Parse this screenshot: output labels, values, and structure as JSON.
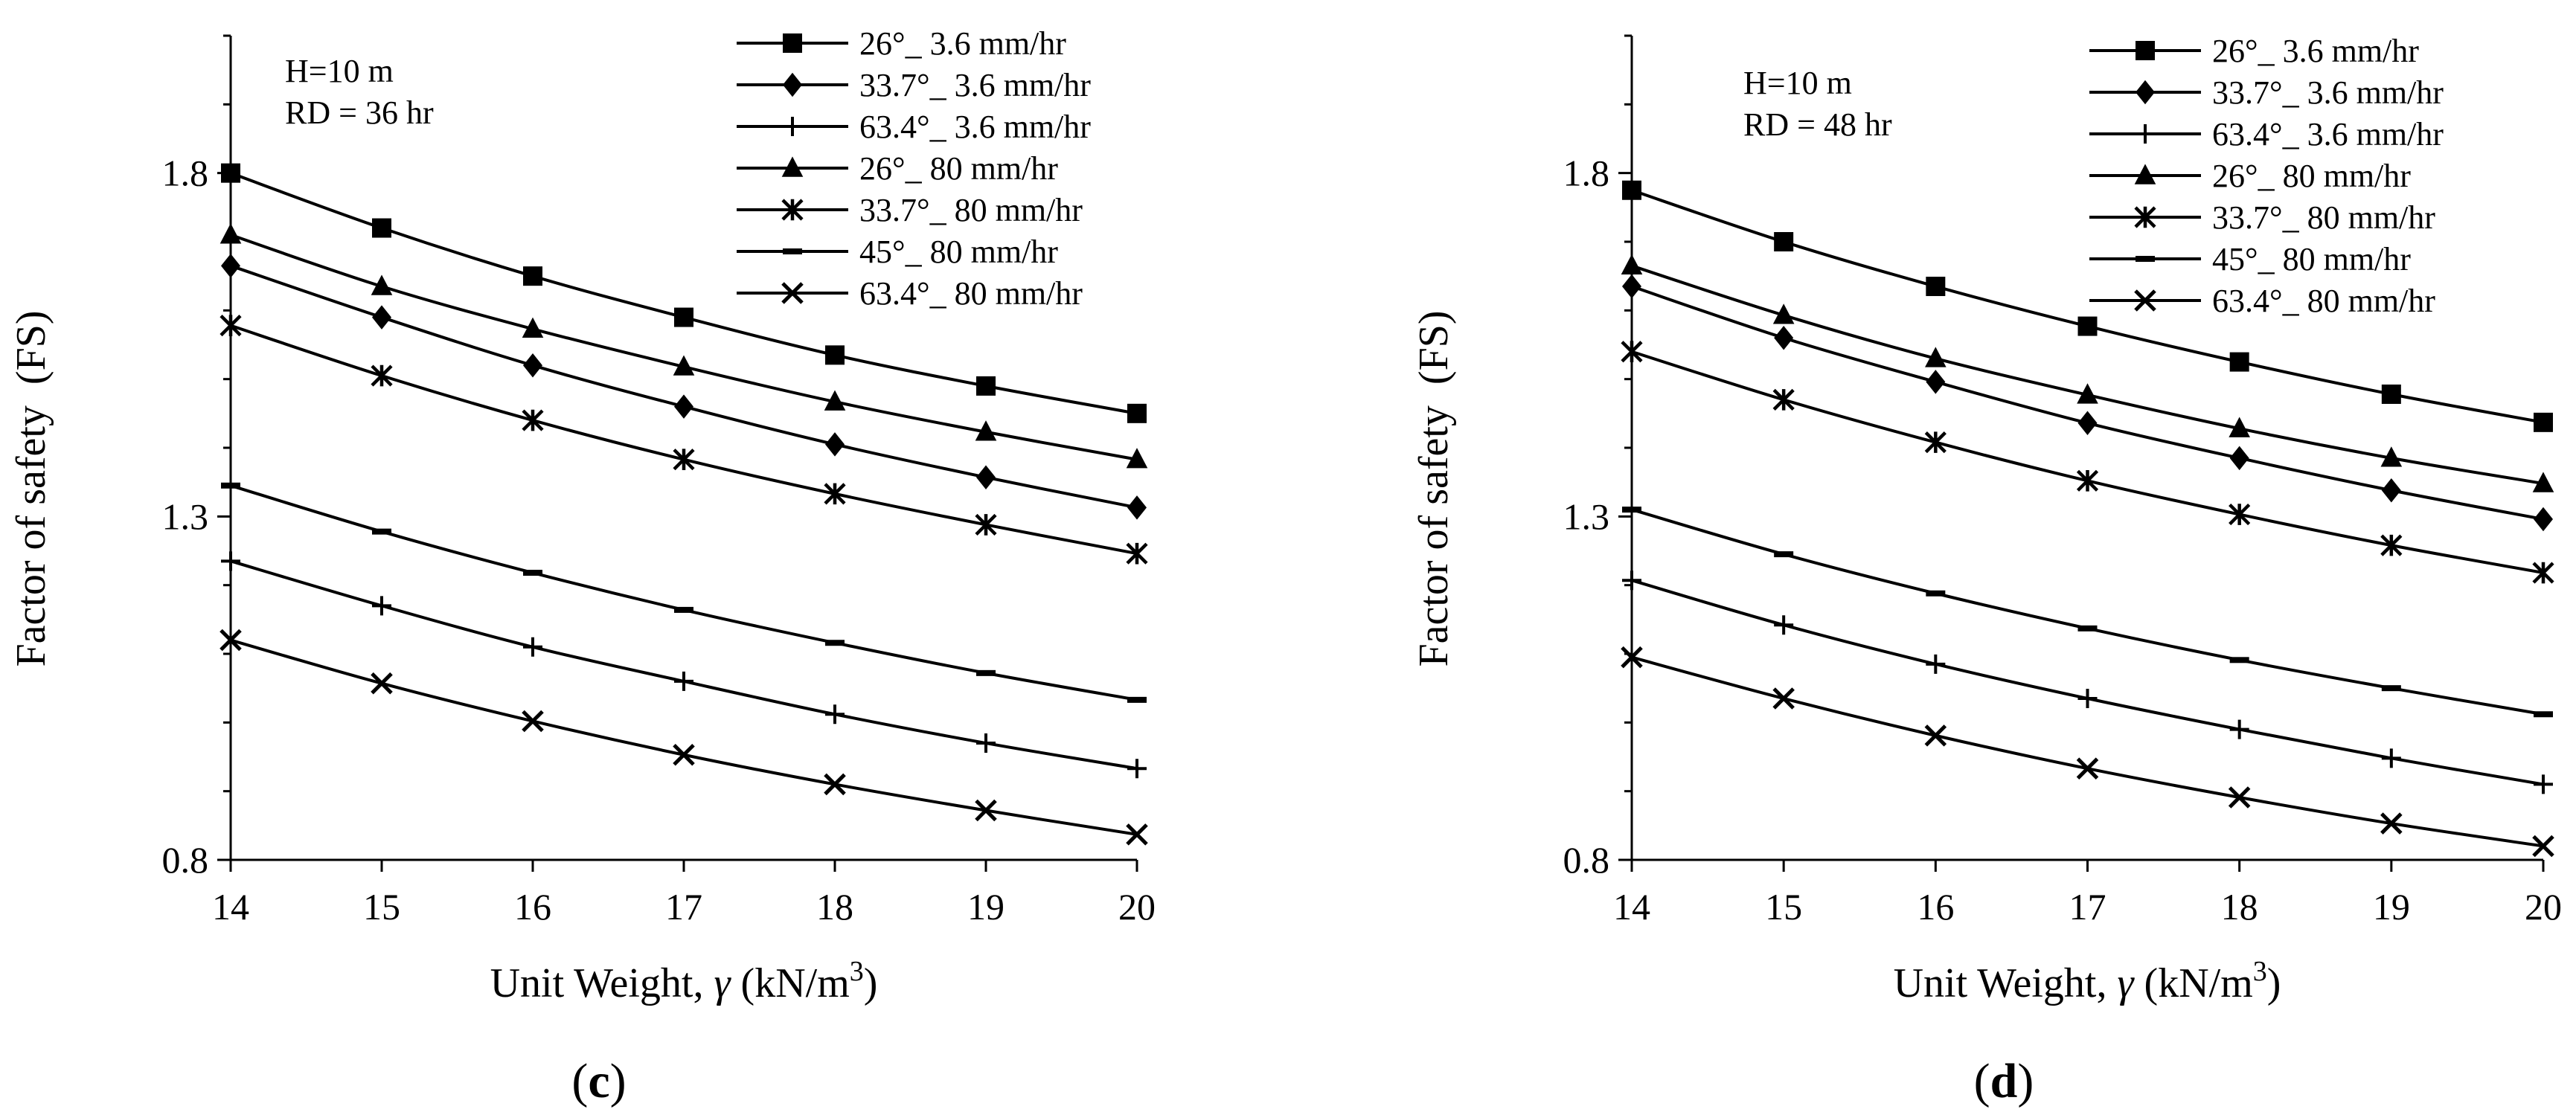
{
  "chart_data": [
    {
      "id": "c",
      "type": "line",
      "panel_label": "c",
      "xlabel": "Unit Weight, γ (kN/m3)",
      "xlabel_parts": {
        "pre": "Unit Weight, ",
        "symbol": "γ",
        "unit": " (kN/m",
        "sup": "3",
        "post": ")"
      },
      "ylabel": "Factor of safety  (FS)",
      "xlim": [
        14,
        20
      ],
      "ylim": [
        0.8,
        2.0
      ],
      "xticks": [
        "14",
        "15",
        "16",
        "17",
        "18",
        "19",
        "20"
      ],
      "yticks": [
        "0.8",
        "1.3",
        "1.8"
      ],
      "annotation": [
        "H=10 m",
        "RD = 36 hr"
      ],
      "x": [
        14,
        15,
        16,
        17,
        18,
        19,
        20
      ],
      "series": [
        {
          "name": "26°_ 3.6 mm/hr",
          "marker": "square",
          "values": [
            1.8,
            1.72,
            1.65,
            1.59,
            1.535,
            1.49,
            1.45
          ]
        },
        {
          "name": "33.7°_ 3.6 mm/hr",
          "marker": "diamond",
          "values": [
            1.665,
            1.59,
            1.52,
            1.46,
            1.405,
            1.357,
            1.313
          ]
        },
        {
          "name": "63.4°_ 3.6 mm/hr",
          "marker": "plus",
          "values": [
            1.235,
            1.17,
            1.11,
            1.06,
            1.012,
            0.97,
            0.933
          ]
        },
        {
          "name": "26°_ 80 mm/hr",
          "marker": "triangle",
          "values": [
            1.71,
            1.635,
            1.573,
            1.518,
            1.467,
            1.423,
            1.383
          ]
        },
        {
          "name": "33.7°_ 80 mm/hr",
          "marker": "asterisk",
          "values": [
            1.578,
            1.505,
            1.44,
            1.383,
            1.333,
            1.288,
            1.246
          ]
        },
        {
          "name": "45°_ 80 mm/hr",
          "marker": "dash",
          "values": [
            1.345,
            1.278,
            1.218,
            1.164,
            1.116,
            1.072,
            1.033
          ]
        },
        {
          "name": "63.4°_ 80 mm/hr",
          "marker": "x",
          "values": [
            1.12,
            1.057,
            1.002,
            0.953,
            0.91,
            0.872,
            0.837
          ]
        }
      ]
    },
    {
      "id": "d",
      "type": "line",
      "panel_label": "d",
      "xlabel": "Unit Weight, γ (kN/m3)",
      "xlabel_parts": {
        "pre": "Unit Weight, ",
        "symbol": "γ",
        "unit": " (kN/m",
        "sup": "3",
        "post": ")"
      },
      "ylabel": "Factor of safety  (FS)",
      "xlim": [
        14,
        20
      ],
      "ylim": [
        0.8,
        2.0
      ],
      "xticks": [
        "14",
        "15",
        "16",
        "17",
        "18",
        "19",
        "20"
      ],
      "yticks": [
        "0.8",
        "1.3",
        "1.8"
      ],
      "annotation": [
        "H=10 m",
        "RD = 48 hr"
      ],
      "x": [
        14,
        15,
        16,
        17,
        18,
        19,
        20
      ],
      "series": [
        {
          "name": "26°_ 3.6 mm/hr",
          "marker": "square",
          "values": [
            1.775,
            1.7,
            1.635,
            1.577,
            1.525,
            1.478,
            1.437
          ]
        },
        {
          "name": "33.7°_ 3.6 mm/hr",
          "marker": "diamond",
          "values": [
            1.635,
            1.56,
            1.496,
            1.436,
            1.385,
            1.338,
            1.296
          ]
        },
        {
          "name": "63.4°_ 3.6 mm/hr",
          "marker": "plus",
          "values": [
            1.207,
            1.142,
            1.085,
            1.035,
            0.99,
            0.948,
            0.91
          ]
        },
        {
          "name": "26°_ 80 mm/hr",
          "marker": "triangle",
          "values": [
            1.665,
            1.593,
            1.53,
            1.477,
            1.428,
            1.385,
            1.348
          ]
        },
        {
          "name": "33.7°_ 80 mm/hr",
          "marker": "asterisk",
          "values": [
            1.54,
            1.47,
            1.408,
            1.352,
            1.303,
            1.258,
            1.218
          ]
        },
        {
          "name": "45°_ 80 mm/hr",
          "marker": "dash",
          "values": [
            1.31,
            1.245,
            1.188,
            1.137,
            1.091,
            1.05,
            1.012
          ]
        },
        {
          "name": "63.4°_ 80 mm/hr",
          "marker": "x",
          "values": [
            1.095,
            1.035,
            0.981,
            0.933,
            0.891,
            0.853,
            0.82
          ]
        }
      ]
    }
  ]
}
